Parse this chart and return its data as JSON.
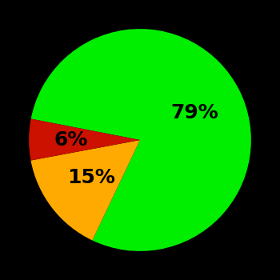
{
  "slices": [
    79,
    15,
    6
  ],
  "colors": [
    "#00ee00",
    "#ffaa00",
    "#cc1100"
  ],
  "labels": [
    "79%",
    "15%",
    "6%"
  ],
  "background_color": "#000000",
  "text_color": "#000000",
  "startangle": 169,
  "counterclock": false,
  "label_fontsize": 18,
  "label_fontweight": "bold",
  "label_radii": [
    0.55,
    0.55,
    0.62
  ]
}
